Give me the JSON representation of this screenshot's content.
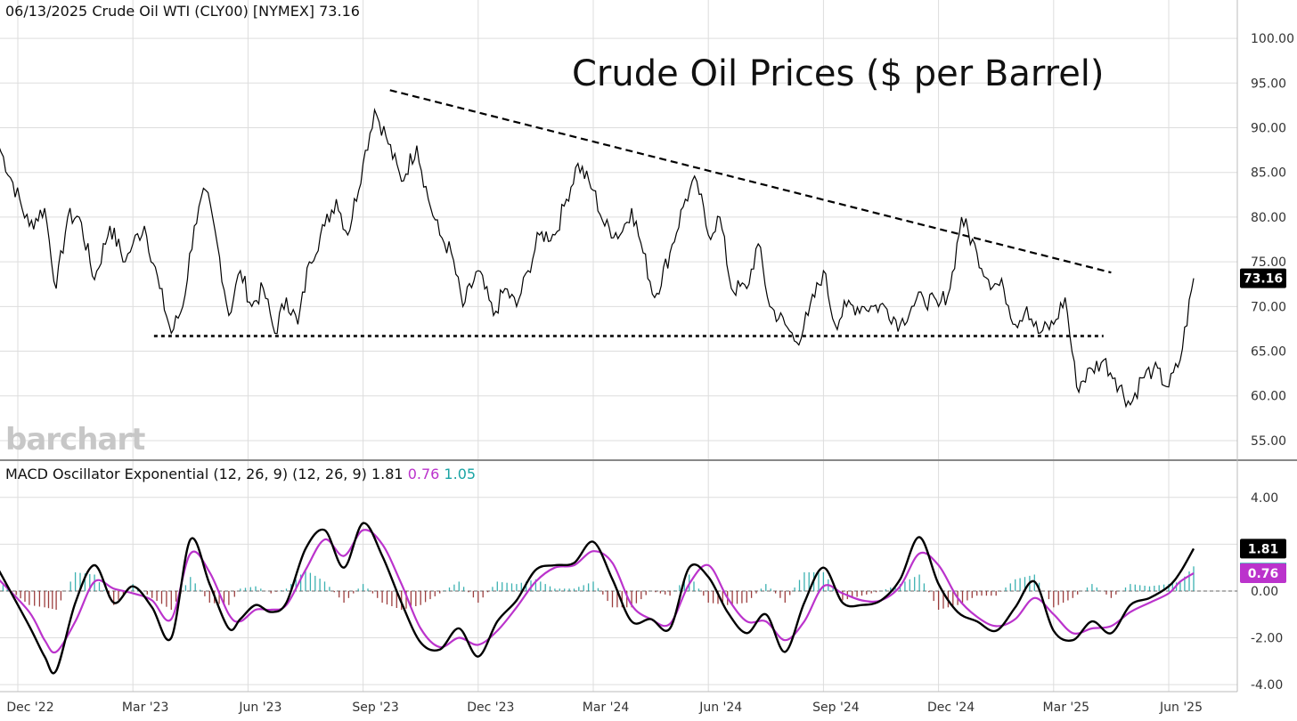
{
  "header": {
    "date": "06/13/2025",
    "symbol_text": "Crude Oil WTI (CLY00) [NYMEX]",
    "last": "73.16"
  },
  "title": "Crude Oil Prices ($ per Barrel)",
  "watermark": "barchart",
  "macd_header": {
    "label": "MACD Oscillator Exponential (12, 26, 9)  (12, 26, 9)",
    "macd": "1.81",
    "signal": "0.76",
    "hist": "1.05"
  },
  "colors": {
    "price_line": "#000000",
    "macd_line": "#000000",
    "signal_line": "#bb33cc",
    "hist_pos": "#1aa4a4",
    "hist_neg": "#8b1c1c",
    "grid": "#dddddd",
    "watermark": "#c7c7c7"
  },
  "chart_data": [
    {
      "type": "line",
      "name": "price",
      "x_labels": [
        "Dec '22",
        "Mar '23",
        "Jun '23",
        "Sep '23",
        "Dec '23",
        "Mar '24",
        "Jun '24",
        "Sep '24",
        "Dec '24",
        "Mar '25",
        "Jun '25"
      ],
      "y_ticks": [
        "100.00",
        "95.00",
        "90.00",
        "85.00",
        "80.00",
        "75.00",
        "70.00",
        "65.00",
        "60.00",
        "55.00"
      ],
      "ylim": [
        53.5,
        101.5
      ],
      "last_value": 73.16,
      "last_label": "73.16",
      "x": [
        -0.5,
        0.3,
        0.7,
        1.0,
        1.3,
        1.6,
        2.0,
        2.4,
        2.8,
        3.0,
        3.3,
        3.7,
        4.0,
        4.3,
        4.6,
        4.9,
        5.2,
        5.5,
        5.8,
        6.1,
        6.4,
        6.7,
        7.0,
        7.3,
        7.6,
        8.0,
        8.3,
        8.6,
        9.0,
        9.3,
        9.6,
        10.0,
        10.4,
        10.7,
        11.0,
        11.3,
        11.6,
        12.0,
        12.4,
        12.7,
        13.0,
        13.3,
        13.6,
        14.0,
        14.3,
        14.6,
        15.0,
        15.3,
        15.7,
        16.0,
        16.3,
        16.6,
        17.0,
        17.4,
        17.7,
        18.0,
        18.3,
        18.6,
        19.0,
        19.3,
        19.6,
        20.0,
        20.3,
        20.6,
        21.0,
        21.3,
        21.6,
        22.0,
        22.3,
        22.6,
        23.0,
        23.3,
        23.6,
        24.0,
        24.3,
        24.6,
        25.0,
        25.3,
        25.7,
        26.0,
        26.3,
        26.6,
        27.0,
        27.3,
        27.6,
        28.0,
        28.3,
        28.6,
        29.0,
        29.3,
        29.6,
        30.0,
        30.3,
        30.65
      ],
      "y": [
        88,
        79,
        81,
        72,
        80,
        80,
        73,
        79,
        75,
        77,
        79,
        72,
        67,
        70,
        79,
        83,
        77,
        69,
        74,
        70,
        72,
        67,
        71,
        68,
        75,
        79,
        82,
        78,
        86,
        92,
        89,
        84,
        88,
        82,
        78,
        76,
        70,
        74,
        69,
        72,
        70,
        74,
        78,
        78,
        82,
        86,
        83,
        79,
        78,
        81,
        76,
        71,
        76,
        82,
        84,
        78,
        80,
        72,
        72,
        77,
        70,
        68,
        66,
        69,
        74,
        68,
        70,
        70,
        70,
        70,
        68,
        70,
        71,
        70,
        72,
        80,
        76,
        73,
        72,
        68,
        70,
        67,
        68,
        71,
        61,
        63,
        64,
        62,
        59,
        62,
        63,
        61,
        64,
        73.16
      ]
    },
    {
      "type": "line",
      "name": "MACD",
      "y_ticks": [
        "4.00",
        "2.00",
        "0.00",
        "-2.00",
        "-4.00"
      ],
      "ylim": [
        -4.3,
        4.6
      ],
      "x": [
        -0.5,
        0.3,
        0.7,
        1.0,
        1.5,
        2.0,
        2.5,
        3.0,
        3.5,
        4.0,
        4.5,
        5.0,
        5.5,
        5.8,
        6.2,
        6.6,
        7.0,
        7.5,
        8.0,
        8.5,
        9.0,
        9.5,
        10.0,
        10.5,
        11.0,
        11.5,
        12.0,
        12.5,
        13.0,
        13.5,
        14.0,
        14.5,
        15.0,
        15.5,
        16.0,
        16.5,
        17.0,
        17.5,
        18.0,
        18.5,
        19.0,
        19.5,
        20.0,
        20.5,
        21.0,
        21.5,
        22.0,
        22.5,
        23.0,
        23.5,
        24.0,
        24.5,
        25.0,
        25.5,
        26.0,
        26.5,
        27.0,
        27.5,
        28.0,
        28.5,
        29.0,
        29.5,
        30.0,
        30.3,
        30.65
      ],
      "y": [
        0.9,
        -1.5,
        -2.8,
        -3.4,
        -0.5,
        1.1,
        -0.5,
        0.2,
        -0.7,
        -2.0,
        2.2,
        0.3,
        -1.6,
        -1.2,
        -0.6,
        -0.9,
        -0.5,
        1.8,
        2.6,
        1.0,
        2.9,
        1.5,
        -0.5,
        -2.2,
        -2.5,
        -1.6,
        -2.8,
        -1.3,
        -0.4,
        0.9,
        1.1,
        1.2,
        2.1,
        0.5,
        -1.3,
        -1.2,
        -1.6,
        1.0,
        0.6,
        -0.9,
        -1.8,
        -1.0,
        -2.6,
        -0.5,
        1.0,
        -0.5,
        -0.6,
        -0.4,
        0.5,
        2.3,
        0.3,
        -0.9,
        -1.3,
        -1.7,
        -0.7,
        0.4,
        -1.7,
        -2.1,
        -1.3,
        -1.8,
        -0.6,
        -0.3,
        0.2,
        0.8,
        1.81
      ]
    },
    {
      "type": "line",
      "name": "Signal",
      "x": [
        -0.5,
        0.3,
        0.7,
        1.0,
        1.5,
        2.0,
        2.5,
        3.0,
        3.5,
        4.0,
        4.5,
        5.0,
        5.5,
        5.8,
        6.2,
        6.6,
        7.0,
        7.5,
        8.0,
        8.5,
        9.0,
        9.5,
        10.0,
        10.5,
        11.0,
        11.5,
        12.0,
        12.5,
        13.0,
        13.5,
        14.0,
        14.5,
        15.0,
        15.5,
        16.0,
        16.5,
        17.0,
        17.5,
        18.0,
        18.5,
        19.0,
        19.5,
        20.0,
        20.5,
        21.0,
        21.5,
        22.0,
        22.5,
        23.0,
        23.5,
        24.0,
        24.5,
        25.0,
        25.5,
        26.0,
        26.5,
        27.0,
        27.5,
        28.0,
        28.5,
        29.0,
        29.5,
        30.0,
        30.3,
        30.65
      ],
      "y": [
        0.5,
        -0.9,
        -2.1,
        -2.6,
        -1.3,
        0.4,
        0.1,
        -0.1,
        -0.4,
        -1.2,
        1.6,
        0.8,
        -1.0,
        -1.3,
        -0.8,
        -0.8,
        -0.6,
        0.9,
        2.2,
        1.5,
        2.6,
        2.0,
        0.3,
        -1.6,
        -2.4,
        -2.0,
        -2.3,
        -1.7,
        -0.7,
        0.4,
        1.0,
        1.1,
        1.7,
        1.2,
        -0.6,
        -1.2,
        -1.4,
        0.3,
        1.1,
        -0.3,
        -1.3,
        -1.3,
        -2.1,
        -1.3,
        0.2,
        -0.1,
        -0.4,
        -0.4,
        0.2,
        1.6,
        1.1,
        -0.3,
        -1.1,
        -1.5,
        -1.2,
        -0.3,
        -1.0,
        -1.8,
        -1.6,
        -1.5,
        -0.9,
        -0.5,
        -0.1,
        0.4,
        0.76
      ]
    }
  ]
}
